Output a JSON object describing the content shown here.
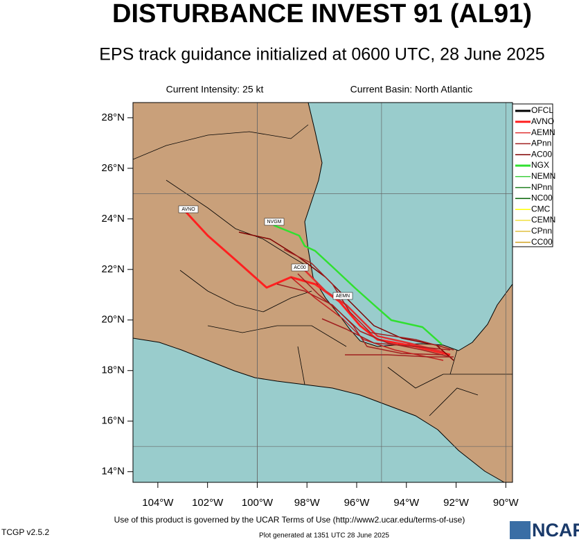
{
  "header": {
    "title": "DISTURBANCE INVEST 91 (AL91)",
    "subtitle": "EPS track guidance initialized at 0600 UTC, 28 June 2025",
    "intensity": "Current Intensity: 25 kt",
    "basin": "Current Basin: North Atlantic"
  },
  "map": {
    "lon_ticks": [
      {
        "value": -104,
        "label": "104°W"
      },
      {
        "value": -102,
        "label": "102°W"
      },
      {
        "value": -100,
        "label": "100°W"
      },
      {
        "value": -98,
        "label": "98°W"
      },
      {
        "value": -96,
        "label": "96°W"
      },
      {
        "value": -94,
        "label": "94°W"
      },
      {
        "value": -92,
        "label": "92°W"
      },
      {
        "value": -90,
        "label": "90°W"
      }
    ],
    "lat_ticks": [
      {
        "value": 28,
        "label": "28°N"
      },
      {
        "value": 26,
        "label": "26°N"
      },
      {
        "value": 24,
        "label": "24°N"
      },
      {
        "value": 22,
        "label": "22°N"
      },
      {
        "value": 20,
        "label": "20°N"
      },
      {
        "value": 18,
        "label": "18°N"
      },
      {
        "value": 16,
        "label": "16°N"
      },
      {
        "value": 14,
        "label": "14°N"
      }
    ],
    "track_labels": [
      "AVNO",
      "NVGM",
      "AC00",
      "AEMN"
    ]
  },
  "legend": [
    {
      "name": "OFCL",
      "color": "#000000"
    },
    {
      "name": "AVNO",
      "color": "#ff2020"
    },
    {
      "name": "AEMN",
      "color": "#e03030"
    },
    {
      "name": "APnn",
      "color": "#a02020"
    },
    {
      "name": "AC00",
      "color": "#800000"
    },
    {
      "name": "NGX",
      "color": "#30e030"
    },
    {
      "name": "NEMN",
      "color": "#40d040"
    },
    {
      "name": "NPnn",
      "color": "#208020"
    },
    {
      "name": "NC00",
      "color": "#006000"
    },
    {
      "name": "CMC",
      "color": "#ffff00"
    },
    {
      "name": "CEMN",
      "color": "#f0e040"
    },
    {
      "name": "CPnn",
      "color": "#e0c040"
    },
    {
      "name": "CC00",
      "color": "#d0a020"
    }
  ],
  "footer": {
    "terms": "Use of this product is governed by the UCAR Terms of Use (http://www2.ucar.edu/terms-of-use)",
    "version": "TCGP v2.5.2",
    "generated": "Plot generated at 1351 UTC   28 June 2025",
    "logo": "NCAR"
  }
}
